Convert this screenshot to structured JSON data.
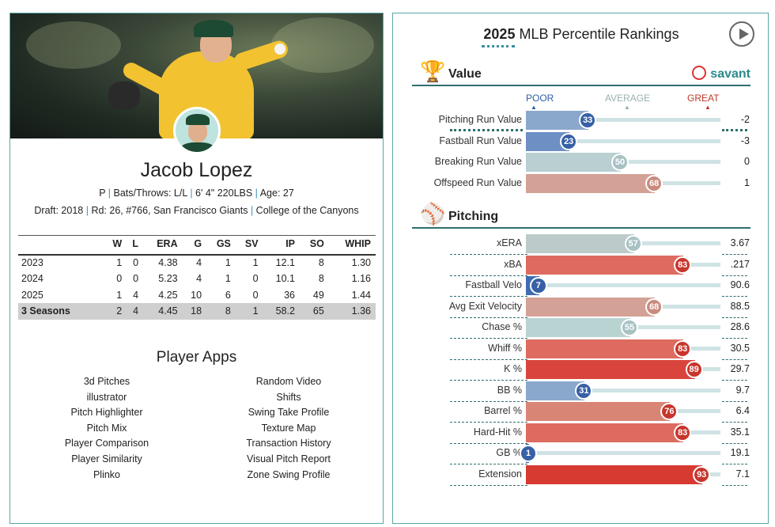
{
  "player": {
    "name": "Jacob Lopez",
    "line1": "P | Bats/Throws: L/L | 6' 4\" 220LBS | Age: 27",
    "line2": "Draft: 2018 | Rd: 26, #766, San Francisco Giants | College of the Canyons"
  },
  "stats": {
    "headers": [
      "",
      "W",
      "L",
      "ERA",
      "G",
      "GS",
      "SV",
      "IP",
      "SO",
      "WHIP"
    ],
    "rows": [
      [
        "2023",
        "1",
        "0",
        "4.38",
        "4",
        "1",
        "1",
        "12.1",
        "8",
        "1.30"
      ],
      [
        "2024",
        "0",
        "0",
        "5.23",
        "4",
        "1",
        "0",
        "10.1",
        "8",
        "1.16"
      ],
      [
        "2025",
        "1",
        "4",
        "4.25",
        "10",
        "6",
        "0",
        "36",
        "49",
        "1.44"
      ]
    ],
    "total": [
      "3 Seasons",
      "2",
      "4",
      "4.45",
      "18",
      "8",
      "1",
      "58.2",
      "65",
      "1.36"
    ]
  },
  "apps": {
    "title": "Player Apps",
    "left": [
      "3d Pitches",
      "illustrator",
      "Pitch Highlighter",
      "Pitch Mix",
      "Player Comparison",
      "Player Similarity",
      "Plinko"
    ],
    "right": [
      "Random Video",
      "Shifts",
      "Swing Take Profile",
      "Texture Map",
      "Transaction History",
      "Visual Pitch Report",
      "Zone Swing Profile"
    ]
  },
  "rankings": {
    "year": "2025",
    "title": "MLB Percentile Rankings",
    "brand": "savant",
    "scale": {
      "poor": "POOR",
      "average": "AVERAGE",
      "great": "GREAT"
    },
    "value_section": "Value",
    "pitching_section": "Pitching",
    "value_rows": [
      {
        "label": "Pitching Run Value",
        "pct": 33,
        "value": "-2",
        "color": "#8aa8cc"
      },
      {
        "label": "Fastball Run Value",
        "pct": 23,
        "value": "-3",
        "color": "#6d8fc4"
      },
      {
        "label": "Breaking Run Value",
        "pct": 50,
        "value": "0",
        "color": "#b9cfd2"
      },
      {
        "label": "Offspeed Run Value",
        "pct": 68,
        "value": "1",
        "color": "#d3a195"
      }
    ],
    "pitching_rows": [
      {
        "label": "xERA",
        "pct": 57,
        "value": "3.67",
        "color": "#bccaca"
      },
      {
        "label": "xBA",
        "pct": 83,
        "value": ".217",
        "color": "#dd6b5f"
      },
      {
        "label": "Fastball Velo",
        "pct": 7,
        "value": "90.6",
        "color": "#3f6db4"
      },
      {
        "label": "Avg Exit Velocity",
        "pct": 68,
        "value": "88.5",
        "color": "#d3a195"
      },
      {
        "label": "Chase %",
        "pct": 55,
        "value": "28.6",
        "color": "#b9d2d2"
      },
      {
        "label": "Whiff %",
        "pct": 83,
        "value": "30.5",
        "color": "#dd6b5f"
      },
      {
        "label": "K %",
        "pct": 89,
        "value": "29.7",
        "color": "#d9453c"
      },
      {
        "label": "BB %",
        "pct": 31,
        "value": "9.7",
        "color": "#8aa8cc"
      },
      {
        "label": "Barrel %",
        "pct": 76,
        "value": "6.4",
        "color": "#d98576"
      },
      {
        "label": "Hard-Hit %",
        "pct": 83,
        "value": "35.1",
        "color": "#dd6b5f"
      },
      {
        "label": "GB %",
        "pct": 1,
        "value": "19.1",
        "color": "#2f5ea5"
      },
      {
        "label": "Extension",
        "pct": 93,
        "value": "7.1",
        "color": "#d63a31"
      }
    ]
  }
}
